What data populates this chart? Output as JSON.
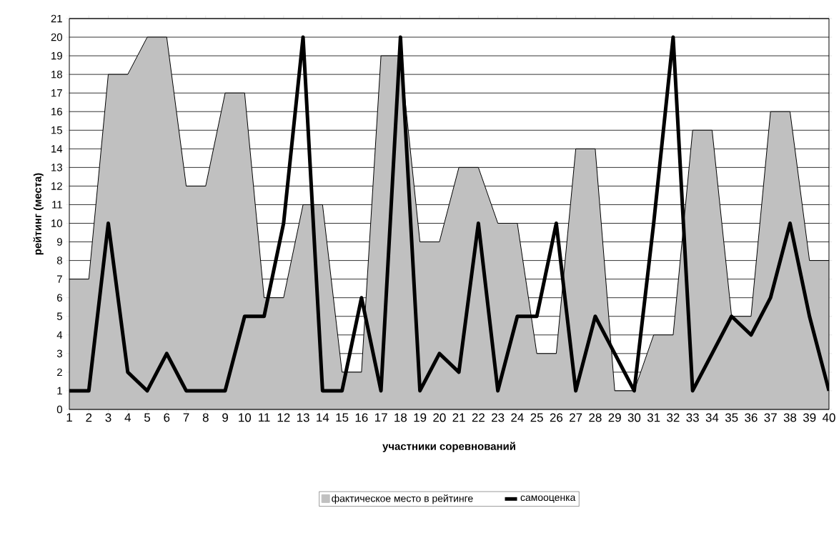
{
  "chart_data": {
    "type": "area",
    "xlabel": "участники соревнований",
    "ylabel": "рейтинг (места)",
    "categories": [
      "1",
      "2",
      "3",
      "4",
      "5",
      "6",
      "7",
      "8",
      "9",
      "10",
      "11",
      "12",
      "13",
      "14",
      "15",
      "16",
      "17",
      "18",
      "19",
      "20",
      "21",
      "22",
      "23",
      "24",
      "25",
      "26",
      "27",
      "28",
      "29",
      "30",
      "31",
      "32",
      "33",
      "34",
      "35",
      "36",
      "37",
      "38",
      "39",
      "40"
    ],
    "series": [
      {
        "name": "фактическое место в рейтинге",
        "color": "#c0c0c0",
        "values": [
          7,
          7,
          18,
          18,
          20,
          20,
          12,
          12,
          17,
          17,
          6,
          6,
          11,
          11,
          2,
          2,
          19,
          19,
          9,
          9,
          13,
          13,
          10,
          10,
          3,
          3,
          14,
          14,
          1,
          1,
          4,
          4,
          15,
          15,
          5,
          5,
          16,
          16,
          8,
          8
        ]
      },
      {
        "name": "самооценка",
        "type": "line",
        "color": "#000000",
        "values": [
          1,
          1,
          10,
          2,
          1,
          3,
          1,
          1,
          1,
          5,
          5,
          10,
          20,
          1,
          1,
          6,
          1,
          20,
          1,
          3,
          2,
          10,
          1,
          5,
          5,
          10,
          1,
          5,
          3,
          1,
          10,
          20,
          1,
          3,
          5,
          4,
          6,
          10,
          5,
          1
        ]
      }
    ],
    "ylim": [
      0,
      21
    ],
    "yticks": [
      0,
      1,
      2,
      3,
      4,
      5,
      6,
      7,
      8,
      9,
      10,
      11,
      12,
      13,
      14,
      15,
      16,
      17,
      18,
      19,
      20,
      21
    ],
    "grid": "y",
    "legend": "bottom"
  }
}
